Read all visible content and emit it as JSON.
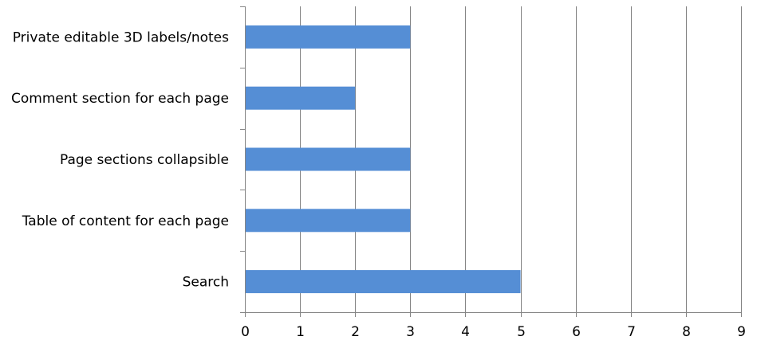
{
  "chart_data": {
    "type": "bar",
    "orientation": "horizontal",
    "title": "",
    "xlabel": "",
    "ylabel": "",
    "categories": [
      "Search",
      "Table of content for each page",
      "Page sections collapsible",
      "Comment section for each page",
      "Private editable 3D labels/notes"
    ],
    "values": [
      5,
      3,
      3,
      2,
      3
    ],
    "xlim": [
      0,
      9
    ],
    "xticks": [
      "0",
      "1",
      "2",
      "3",
      "4",
      "5",
      "6",
      "7",
      "8",
      "9"
    ],
    "grid": "vertical",
    "legend": "none",
    "bar_color": "#558ED5",
    "grid_color": "#868686"
  }
}
